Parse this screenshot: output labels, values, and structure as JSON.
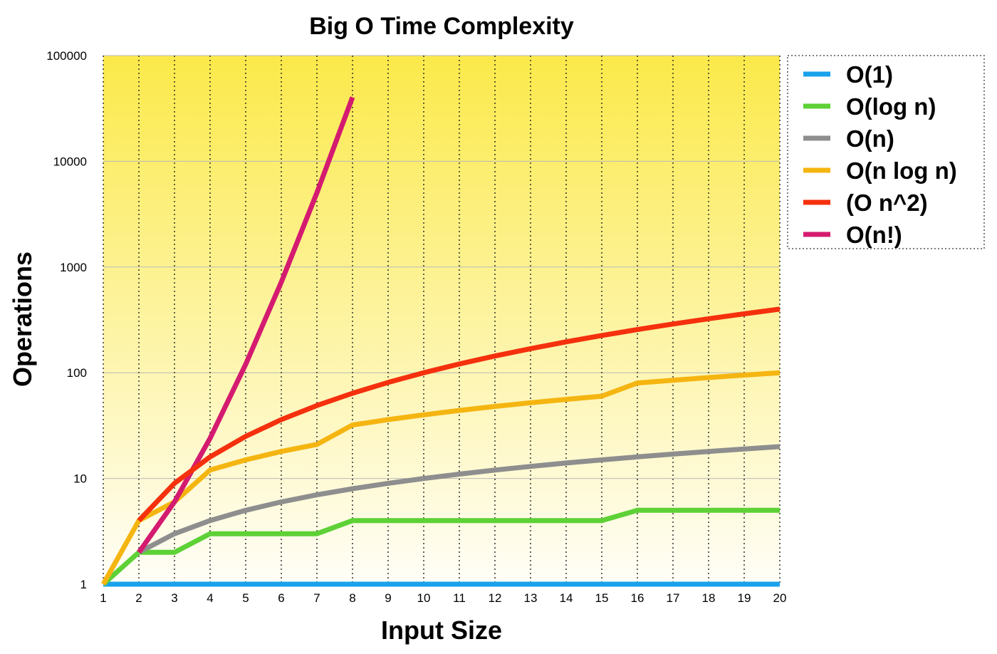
{
  "chart_data": {
    "type": "line",
    "title": "Big O Time Complexity",
    "xlabel": "Input Size",
    "ylabel": "Operations",
    "y_scale": "log",
    "ylim": [
      1,
      100000
    ],
    "y_ticks": [
      1,
      10,
      100,
      1000,
      10000,
      100000
    ],
    "y_tick_labels": [
      "1",
      "10",
      "100",
      "1000",
      "10000",
      "100000"
    ],
    "x_ticks": [
      1,
      2,
      3,
      4,
      5,
      6,
      7,
      8,
      9,
      10,
      11,
      12,
      13,
      14,
      15,
      16,
      17,
      18,
      19,
      20
    ],
    "x_tick_labels": [
      "1",
      "2",
      "3",
      "4",
      "5",
      "6",
      "7",
      "8",
      "9",
      "10",
      "11",
      "12",
      "13",
      "14",
      "15",
      "16",
      "17",
      "18",
      "19",
      "20"
    ],
    "grid": true,
    "legend_position": "right",
    "background": {
      "top": "#fbe94a",
      "bottom": "#fffef8"
    },
    "series": [
      {
        "name": "O(1)",
        "color": "#1aa3ec",
        "x": [
          1,
          2,
          3,
          4,
          5,
          6,
          7,
          8,
          9,
          10,
          11,
          12,
          13,
          14,
          15,
          16,
          17,
          18,
          19,
          20
        ],
        "values": [
          1,
          1,
          1,
          1,
          1,
          1,
          1,
          1,
          1,
          1,
          1,
          1,
          1,
          1,
          1,
          1,
          1,
          1,
          1,
          1
        ]
      },
      {
        "name": "O(log n)",
        "color": "#5dd136",
        "x": [
          1,
          2,
          3,
          4,
          5,
          6,
          7,
          8,
          9,
          10,
          11,
          12,
          13,
          14,
          15,
          16,
          17,
          18,
          19,
          20
        ],
        "values": [
          1,
          2,
          2,
          3,
          3,
          3,
          3,
          4,
          4,
          4,
          4,
          4,
          4,
          4,
          4,
          5,
          5,
          5,
          5,
          5
        ]
      },
      {
        "name": "O(n)",
        "color": "#8e8e8e",
        "x": [
          2,
          3,
          4,
          5,
          6,
          7,
          8,
          9,
          10,
          11,
          12,
          13,
          14,
          15,
          16,
          17,
          18,
          19,
          20
        ],
        "values": [
          2,
          3,
          4,
          5,
          6,
          7,
          8,
          9,
          10,
          11,
          12,
          13,
          14,
          15,
          16,
          17,
          18,
          19,
          20
        ]
      },
      {
        "name": "O(n log n)",
        "color": "#f5b511",
        "x": [
          1,
          2,
          3,
          4,
          5,
          6,
          7,
          8,
          9,
          10,
          11,
          12,
          13,
          14,
          15,
          16,
          17,
          18,
          19,
          20
        ],
        "values": [
          1,
          4,
          6,
          12,
          15,
          18,
          21,
          32,
          36,
          40,
          44,
          48,
          52,
          56,
          60,
          80,
          85,
          90,
          95,
          100
        ]
      },
      {
        "name": "(O n^2)",
        "color": "#f5300d",
        "x": [
          2,
          3,
          4,
          5,
          6,
          7,
          8,
          9,
          10,
          11,
          12,
          13,
          14,
          15,
          16,
          17,
          18,
          19,
          20
        ],
        "values": [
          4,
          9,
          16,
          25,
          36,
          49,
          64,
          81,
          100,
          121,
          144,
          169,
          196,
          225,
          256,
          289,
          324,
          361,
          400
        ]
      },
      {
        "name": "O(n!)",
        "color": "#d41b70",
        "x": [
          2,
          3,
          4,
          5,
          6,
          7,
          8
        ],
        "values": [
          2,
          6,
          24,
          120,
          720,
          5040,
          40320
        ]
      }
    ]
  }
}
